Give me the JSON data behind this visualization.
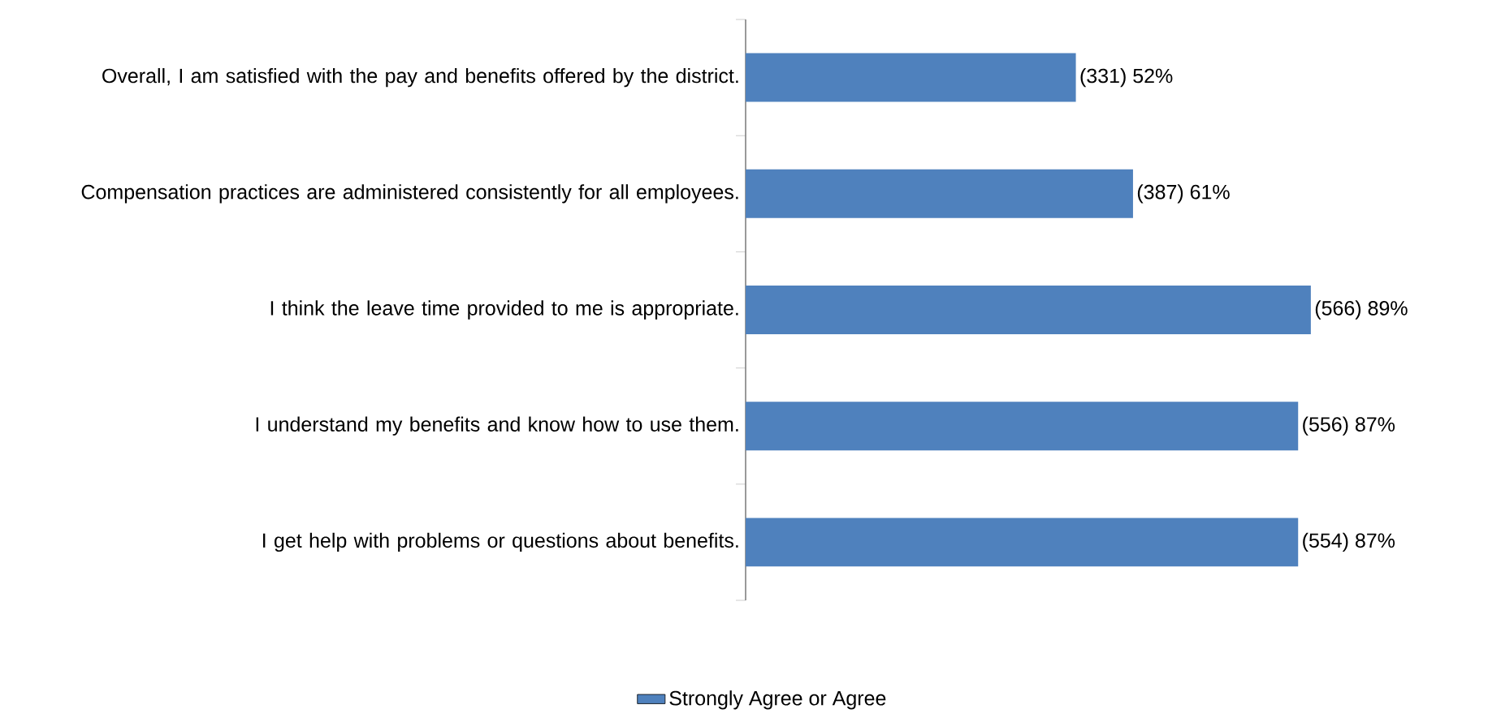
{
  "chart_data": {
    "type": "bar",
    "orientation": "horizontal",
    "categories": [
      "Overall, I am satisfied with the pay and benefits offered by the district.",
      "Compensation practices are administered consistently for all employees.",
      "I think the leave time provided to me is appropriate.",
      "I understand my benefits and know how to use them.",
      "I get help with problems or questions about benefits."
    ],
    "series": [
      {
        "name": "Strongly Agree or Agree",
        "color": "#4f81bd",
        "values": [
          52,
          61,
          89,
          87,
          87
        ],
        "value_labels": [
          "(331) 52%",
          "(387) 61%",
          "(566) 89%",
          "(556) 87%",
          "(554) 87%"
        ]
      }
    ],
    "legend": "bottom"
  }
}
